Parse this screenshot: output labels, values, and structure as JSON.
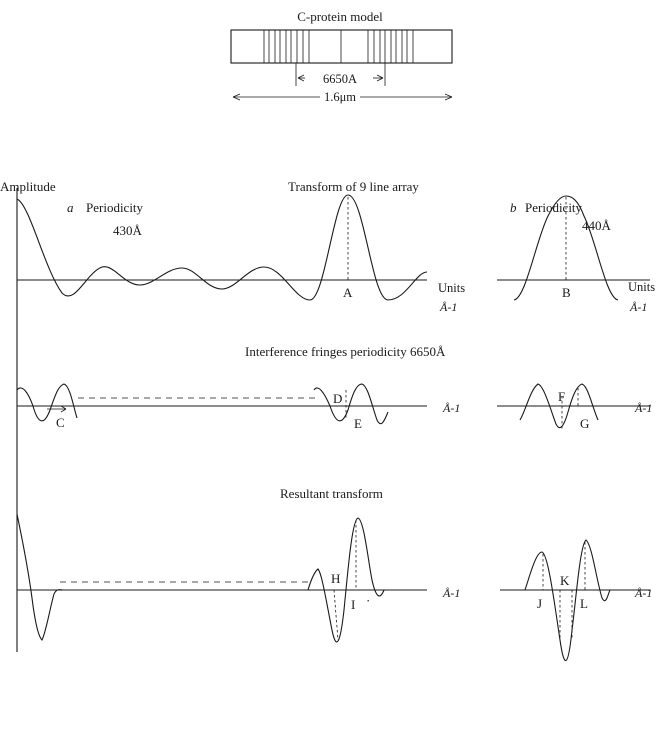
{
  "model": {
    "title": "C-protein model",
    "dim_6650": "6650A",
    "dim_length": "1.6μm"
  },
  "panel_a": {
    "amplitude": "Amplitude",
    "letter": "a",
    "periodicity": "Periodicity",
    "period_value": "430Å",
    "transform_title": "Transform of 9 line array"
  },
  "panel_b": {
    "letter": "b",
    "periodicity": "Periodicity",
    "period_value": "440Å"
  },
  "middle": {
    "title": "Interference fringes periodicity 6650Å"
  },
  "bottom": {
    "title": "Resultant transform"
  },
  "axis": {
    "units": "Units",
    "inv_angstrom": "Å-1"
  },
  "labels": {
    "A": "A",
    "B": "B",
    "C": "C",
    "D": "D",
    "E": "E",
    "F": "F",
    "G": "G",
    "H": "H",
    "I": "I",
    "J": "J",
    "K": "K",
    "L": "L"
  }
}
